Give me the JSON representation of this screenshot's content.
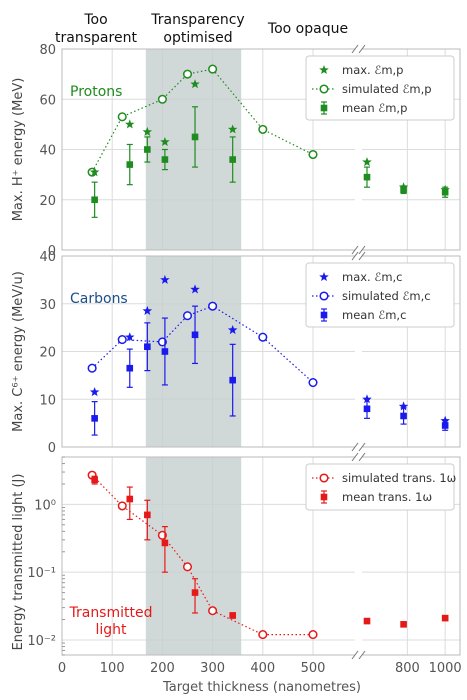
{
  "captions": {
    "left": [
      "Too",
      "transparent"
    ],
    "middle": [
      "Transparency",
      "optimised"
    ],
    "right": "Too opaque"
  },
  "xlabel": "Target thickness (nanometres)",
  "xticks": [
    "0",
    "100",
    "200",
    "300",
    "400",
    "500",
    "800",
    "1000"
  ],
  "colors": {
    "protons": "#1f8c1f",
    "carbons": "#1a1aee",
    "light": "#e61919",
    "band": "#c7d0d0"
  },
  "chart_data": [
    {
      "type": "scatter",
      "name_label": "Protons",
      "ylabel": "Max. H⁺ energy (MeV)",
      "ylim": [
        0,
        80
      ],
      "yticks": [
        "0",
        "20",
        "40",
        "60",
        "80"
      ],
      "legend": [
        "max. ℰm,p",
        "simulated ℰm,p",
        "mean ℰm,p"
      ],
      "legend_position": "top-right",
      "max": {
        "x": [
          65,
          135,
          170,
          205,
          265,
          340,
          570,
          780,
          1000
        ],
        "y": [
          31,
          50,
          47,
          43,
          66,
          48,
          35,
          25,
          24
        ]
      },
      "simulated": {
        "x": [
          60,
          120,
          200,
          250,
          300,
          400,
          500
        ],
        "y": [
          31,
          53,
          60,
          70,
          72,
          48,
          38
        ]
      },
      "mean": {
        "x": [
          65,
          135,
          170,
          205,
          265,
          340,
          570,
          780,
          1000
        ],
        "y": [
          20,
          34,
          40,
          36,
          45,
          36,
          29,
          24,
          23
        ],
        "err": [
          7,
          8,
          5,
          4,
          12,
          9,
          4,
          1.5,
          2
        ]
      }
    },
    {
      "type": "scatter",
      "name_label": "Carbons",
      "ylabel": "Max. C⁶⁺ energy (MeV/u)",
      "ylim": [
        0,
        40
      ],
      "yticks": [
        "0",
        "10",
        "20",
        "30",
        "40"
      ],
      "legend": [
        "max. ℰm,c",
        "simulated ℰm,c",
        "mean ℰm,c"
      ],
      "legend_position": "top-right",
      "max": {
        "x": [
          65,
          135,
          170,
          205,
          265,
          340,
          570,
          780,
          1000
        ],
        "y": [
          11.5,
          23,
          28.5,
          35,
          33,
          24.5,
          10,
          8.5,
          5.5
        ]
      },
      "simulated": {
        "x": [
          60,
          120,
          200,
          250,
          300,
          400,
          500
        ],
        "y": [
          16.5,
          22.5,
          22,
          27.5,
          29.5,
          23,
          13.5
        ]
      },
      "mean": {
        "x": [
          65,
          135,
          170,
          205,
          265,
          340,
          570,
          780,
          1000
        ],
        "y": [
          6,
          16.5,
          21,
          20,
          23.5,
          14,
          8,
          6.5,
          4.5
        ],
        "err": [
          3.5,
          4,
          5,
          7,
          6,
          7.5,
          2,
          1.7,
          1
        ]
      }
    },
    {
      "type": "scatter",
      "name_label": "Transmitted light",
      "name_lines": [
        "Transmitted",
        "light"
      ],
      "ylabel": "Energy transmitted light (J)",
      "yscale": "log",
      "ylim": [
        0.006,
        5
      ],
      "yticks": [
        "10⁻²",
        "10⁻¹",
        "10⁰"
      ],
      "legend": [
        "simulated trans. 1ω",
        "mean trans. 1ω"
      ],
      "legend_position": "top-right",
      "simulated": {
        "x": [
          60,
          120,
          200,
          250,
          300,
          400,
          500
        ],
        "y": [
          2.7,
          0.95,
          0.35,
          0.12,
          0.027,
          0.012,
          0.012
        ]
      },
      "mean": {
        "x": [
          65,
          135,
          170,
          205,
          265,
          340,
          570,
          780,
          1000
        ],
        "y": [
          2.3,
          1.2,
          0.7,
          0.27,
          0.05,
          0.023,
          0.019,
          0.017,
          0.021
        ],
        "err_low": [
          0.3,
          0.6,
          0.4,
          0.17,
          0.025,
          0.002,
          0.001,
          0.001,
          0.001
        ],
        "err_high": [
          0.3,
          0.6,
          0.45,
          0.2,
          0.03,
          0.002,
          0.001,
          0.001,
          0.001
        ]
      }
    }
  ]
}
